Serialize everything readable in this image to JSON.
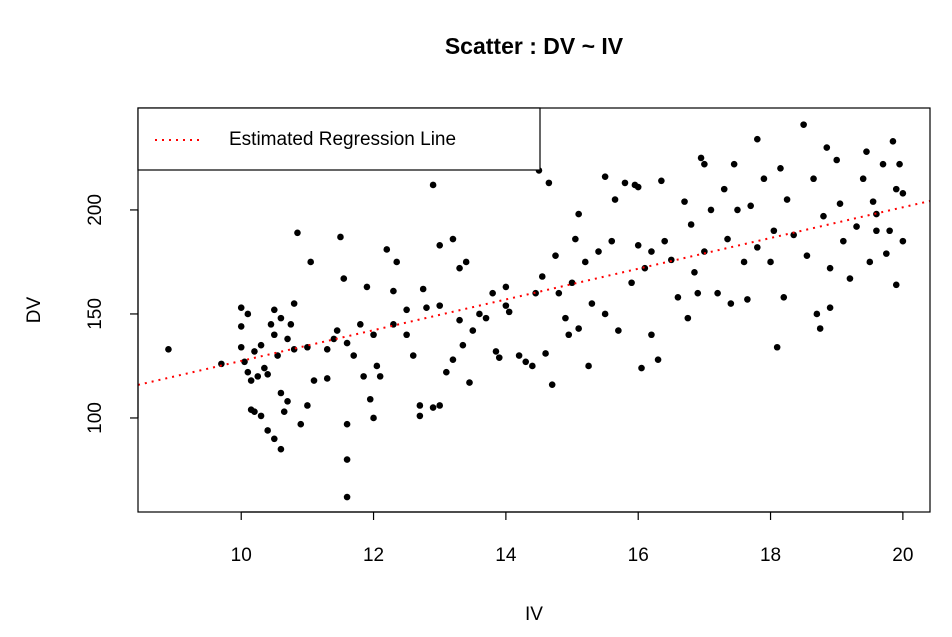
{
  "chart_data": {
    "type": "scatter",
    "title": "Scatter : DV ~ IV",
    "x_label": "IV",
    "y_label": "DV",
    "xlim": [
      8.44,
      20.41
    ],
    "ylim": [
      54.8,
      249.0
    ],
    "xticks": [
      10,
      12,
      14,
      16,
      18,
      20
    ],
    "yticks": [
      100,
      150,
      200
    ],
    "legend": "topleft",
    "series": [
      {
        "color": "#000000",
        "x": [
          8.9,
          9.7,
          10.0,
          10.0,
          10.0,
          10.05,
          10.1,
          10.1,
          10.15,
          10.15,
          10.2,
          10.2,
          10.25,
          10.3,
          10.3,
          10.35,
          10.4,
          10.4,
          10.45,
          10.5,
          10.5,
          10.5,
          10.55,
          10.6,
          10.6,
          10.6,
          10.65,
          10.7,
          10.7,
          10.75,
          10.8,
          10.8,
          10.85,
          10.9,
          11.0,
          11.0,
          11.05,
          11.1,
          11.3,
          11.3,
          11.4,
          11.45,
          11.5,
          11.55,
          11.6,
          11.6,
          11.6,
          11.6,
          11.7,
          11.8,
          11.85,
          11.9,
          11.95,
          12.0,
          12.0,
          12.05,
          12.1,
          12.2,
          12.3,
          12.3,
          12.35,
          12.5,
          12.5,
          12.6,
          12.7,
          12.7,
          12.75,
          12.8,
          12.9,
          12.9,
          13.0,
          13.0,
          13.0,
          13.1,
          13.2,
          13.2,
          13.3,
          13.3,
          13.35,
          13.4,
          13.45,
          13.5,
          13.6,
          13.7,
          13.8,
          13.85,
          13.9,
          14.0,
          14.0,
          14.05,
          14.2,
          14.3,
          14.4,
          14.45,
          14.5,
          14.55,
          14.6,
          14.65,
          14.7,
          14.75,
          14.8,
          14.9,
          14.95,
          15.0,
          15.05,
          15.1,
          15.1,
          15.2,
          15.25,
          15.3,
          15.4,
          15.5,
          15.5,
          15.6,
          15.65,
          15.7,
          15.8,
          15.9,
          15.95,
          16.0,
          16.0,
          16.05,
          16.1,
          16.2,
          16.2,
          16.3,
          16.35,
          16.4,
          16.5,
          16.6,
          16.7,
          16.75,
          16.8,
          16.85,
          16.9,
          16.95,
          17.0,
          17.0,
          17.1,
          17.2,
          17.3,
          17.35,
          17.4,
          17.45,
          17.5,
          17.6,
          17.65,
          17.7,
          17.8,
          17.8,
          17.9,
          18.0,
          18.05,
          18.1,
          18.15,
          18.2,
          18.25,
          18.35,
          18.5,
          18.55,
          18.65,
          18.7,
          18.75,
          18.8,
          18.85,
          18.9,
          18.9,
          19.0,
          19.05,
          19.1,
          19.2,
          19.3,
          19.4,
          19.45,
          19.5,
          19.55,
          19.6,
          19.7,
          19.75,
          19.8,
          19.85,
          19.9,
          19.95,
          20.0,
          20.0,
          19.9,
          19.6
        ],
        "values": [
          133,
          126,
          153,
          144,
          134,
          127,
          150,
          122,
          118,
          104,
          103,
          132,
          120,
          101,
          135,
          124,
          94,
          121,
          145,
          90,
          152,
          140,
          130,
          85,
          148,
          112,
          103,
          108,
          138,
          145,
          155,
          133,
          189,
          97,
          106,
          134,
          175,
          118,
          133,
          119,
          138,
          142,
          187,
          167,
          97,
          80,
          62,
          136,
          130,
          145,
          120,
          163,
          109,
          100,
          140,
          125,
          120,
          181,
          145,
          161,
          175,
          140,
          152,
          130,
          106,
          101,
          162,
          153,
          212,
          105,
          106,
          154,
          183,
          122,
          186,
          128,
          147,
          172,
          135,
          175,
          117,
          142,
          150,
          148,
          160,
          132,
          129,
          163,
          154,
          151,
          130,
          127,
          125,
          160,
          219,
          168,
          131,
          213,
          116,
          178,
          160,
          148,
          140,
          165,
          186,
          198,
          143,
          175,
          125,
          155,
          180,
          216,
          150,
          185,
          205,
          142,
          213,
          165,
          212,
          183,
          211,
          124,
          172,
          140,
          180,
          128,
          214,
          185,
          176,
          158,
          204,
          148,
          193,
          170,
          160,
          225,
          222,
          180,
          200,
          160,
          210,
          186,
          155,
          222,
          200,
          175,
          157,
          202,
          234,
          182,
          215,
          175,
          190,
          134,
          220,
          158,
          205,
          188,
          241,
          178,
          215,
          150,
          143,
          197,
          230,
          172,
          153,
          224,
          203,
          185,
          167,
          192,
          215,
          228,
          175,
          204,
          190,
          222,
          179,
          190,
          233,
          164,
          222,
          185,
          208,
          210,
          198
        ]
      },
      {
        "name": "Estimated Regression Line",
        "type": "line",
        "line_style": "dotted",
        "color": "#ff0000",
        "x": [
          8.44,
          20.41
        ],
        "values": [
          115.9,
          204.3
        ]
      }
    ]
  }
}
